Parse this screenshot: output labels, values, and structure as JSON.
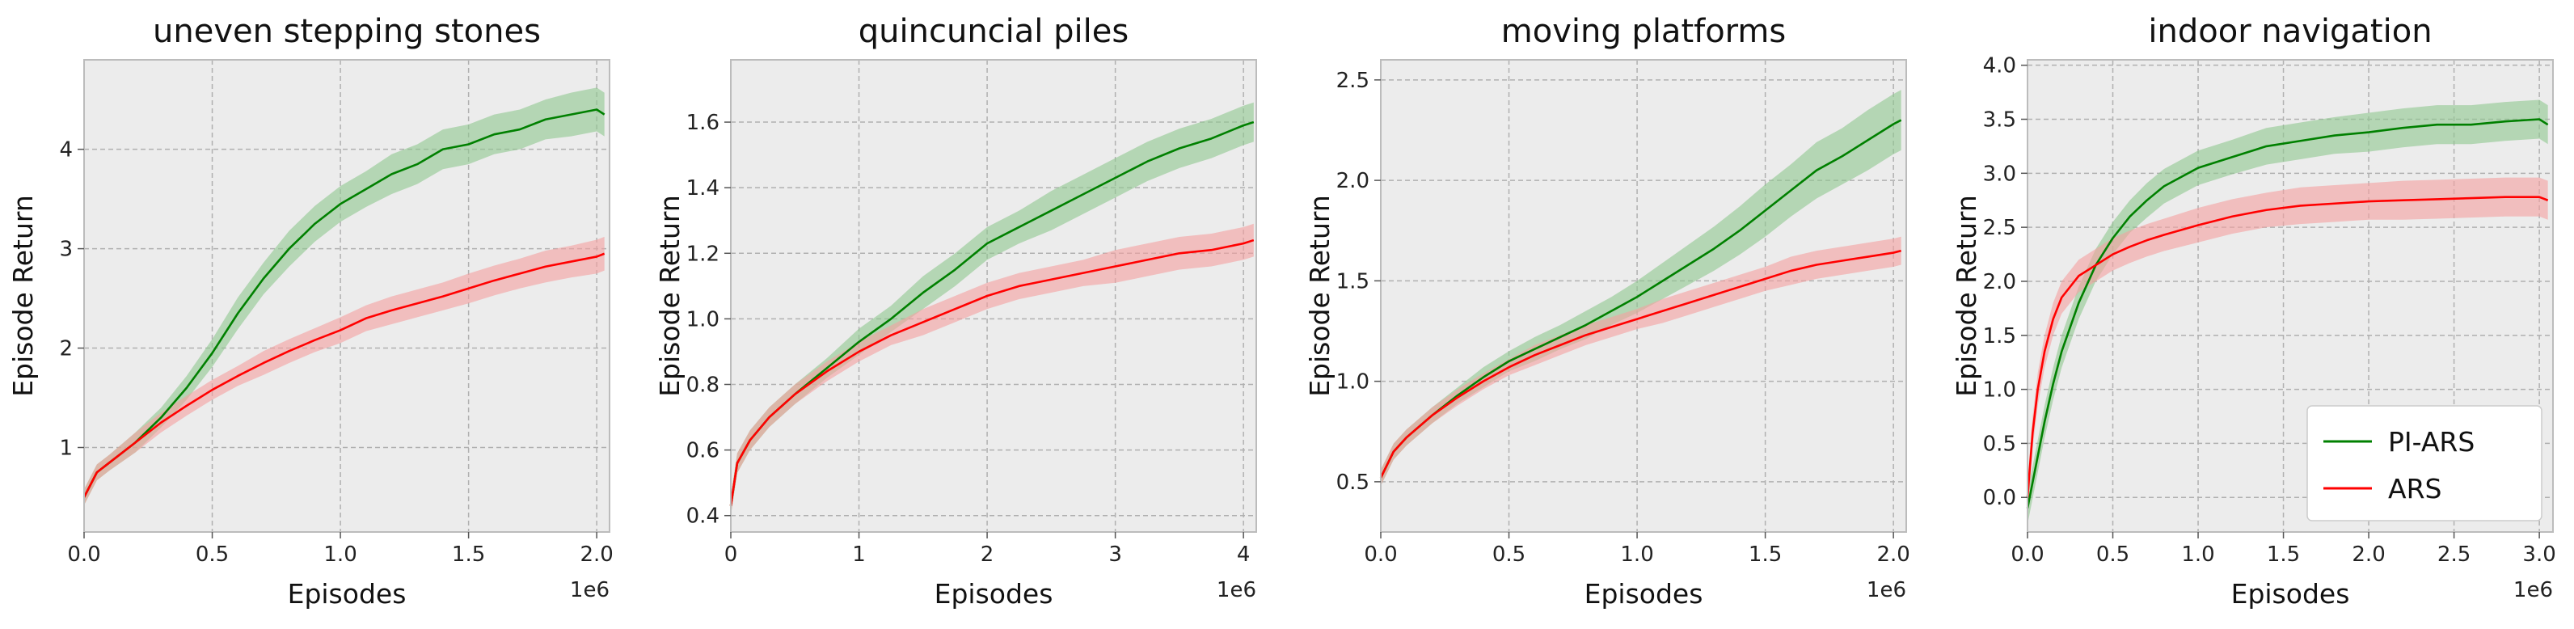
{
  "figure": {
    "exponent_label": "1e6"
  },
  "chart_data": [
    {
      "type": "line",
      "title": "uneven stepping stones",
      "xlabel": "Episodes",
      "ylabel": "Episode Return",
      "xlim": [
        0,
        2.05
      ],
      "ylim": [
        0.15,
        4.9
      ],
      "xticks": [
        0.0,
        0.5,
        1.0,
        1.5,
        2.0
      ],
      "xtick_labels": [
        "0.0",
        "0.5",
        "1.0",
        "1.5",
        "2.0"
      ],
      "yticks": [
        1,
        2,
        3,
        4
      ],
      "ytick_labels": [
        "1",
        "2",
        "3",
        "4"
      ],
      "grid": true,
      "series": [
        {
          "name": "PI-ARS",
          "color": "#008000",
          "x": [
            0,
            0.05,
            0.1,
            0.2,
            0.3,
            0.4,
            0.5,
            0.6,
            0.7,
            0.8,
            0.9,
            1.0,
            1.1,
            1.2,
            1.3,
            1.4,
            1.5,
            1.6,
            1.7,
            1.8,
            1.9,
            2.0,
            2.03
          ],
          "y": [
            0.5,
            0.75,
            0.85,
            1.05,
            1.3,
            1.6,
            1.95,
            2.35,
            2.7,
            3.0,
            3.25,
            3.45,
            3.6,
            3.75,
            3.85,
            4.0,
            4.05,
            4.15,
            4.2,
            4.3,
            4.35,
            4.4,
            4.35
          ],
          "band": [
            0.08,
            0.08,
            0.08,
            0.1,
            0.1,
            0.12,
            0.14,
            0.16,
            0.16,
            0.18,
            0.18,
            0.18,
            0.18,
            0.2,
            0.2,
            0.2,
            0.2,
            0.2,
            0.2,
            0.2,
            0.22,
            0.22,
            0.22
          ]
        },
        {
          "name": "ARS",
          "color": "#ff0000",
          "x": [
            0,
            0.05,
            0.1,
            0.2,
            0.3,
            0.4,
            0.5,
            0.6,
            0.7,
            0.8,
            0.9,
            1.0,
            1.1,
            1.2,
            1.3,
            1.4,
            1.5,
            1.6,
            1.7,
            1.8,
            1.9,
            2.0,
            2.03
          ],
          "y": [
            0.5,
            0.75,
            0.85,
            1.05,
            1.25,
            1.42,
            1.58,
            1.72,
            1.85,
            1.97,
            2.08,
            2.18,
            2.3,
            2.38,
            2.45,
            2.52,
            2.6,
            2.68,
            2.75,
            2.82,
            2.87,
            2.92,
            2.95
          ],
          "band": [
            0.08,
            0.08,
            0.08,
            0.1,
            0.1,
            0.1,
            0.1,
            0.1,
            0.12,
            0.12,
            0.12,
            0.13,
            0.13,
            0.14,
            0.14,
            0.14,
            0.15,
            0.15,
            0.15,
            0.16,
            0.16,
            0.17,
            0.17
          ]
        }
      ]
    },
    {
      "type": "line",
      "title": "quincuncial piles",
      "xlabel": "Episodes",
      "ylabel": "Episode Return",
      "xlim": [
        0,
        4.1
      ],
      "ylim": [
        0.35,
        1.79
      ],
      "xticks": [
        0,
        1,
        2,
        3,
        4
      ],
      "xtick_labels": [
        "0",
        "1",
        "2",
        "3",
        "4"
      ],
      "yticks": [
        0.4,
        0.6,
        0.8,
        1.0,
        1.2,
        1.4,
        1.6
      ],
      "ytick_labels": [
        "0.4",
        "0.6",
        "0.8",
        "1.0",
        "1.2",
        "1.4",
        "1.6"
      ],
      "grid": true,
      "series": [
        {
          "name": "PI-ARS",
          "color": "#008000",
          "x": [
            0,
            0.05,
            0.15,
            0.3,
            0.5,
            0.75,
            1.0,
            1.25,
            1.5,
            1.75,
            2.0,
            2.25,
            2.5,
            2.75,
            3.0,
            3.25,
            3.5,
            3.75,
            4.0,
            4.08
          ],
          "y": [
            0.43,
            0.56,
            0.63,
            0.7,
            0.77,
            0.85,
            0.93,
            1.0,
            1.08,
            1.15,
            1.23,
            1.28,
            1.33,
            1.38,
            1.43,
            1.48,
            1.52,
            1.55,
            1.59,
            1.6
          ],
          "band": [
            0.03,
            0.03,
            0.03,
            0.03,
            0.03,
            0.03,
            0.04,
            0.04,
            0.05,
            0.05,
            0.05,
            0.05,
            0.06,
            0.06,
            0.06,
            0.06,
            0.06,
            0.06,
            0.06,
            0.06
          ]
        },
        {
          "name": "ARS",
          "color": "#ff0000",
          "x": [
            0,
            0.05,
            0.15,
            0.3,
            0.5,
            0.75,
            1.0,
            1.25,
            1.5,
            1.75,
            2.0,
            2.25,
            2.5,
            2.75,
            3.0,
            3.25,
            3.5,
            3.75,
            4.0,
            4.08
          ],
          "y": [
            0.43,
            0.56,
            0.63,
            0.7,
            0.77,
            0.84,
            0.9,
            0.95,
            0.99,
            1.03,
            1.07,
            1.1,
            1.12,
            1.14,
            1.16,
            1.18,
            1.2,
            1.21,
            1.23,
            1.24
          ],
          "band": [
            0.03,
            0.03,
            0.03,
            0.03,
            0.03,
            0.03,
            0.03,
            0.03,
            0.04,
            0.04,
            0.04,
            0.04,
            0.04,
            0.04,
            0.05,
            0.05,
            0.05,
            0.05,
            0.05,
            0.05
          ]
        }
      ]
    },
    {
      "type": "line",
      "title": "moving platforms",
      "xlabel": "Episodes",
      "ylabel": "Episode Return",
      "xlim": [
        0,
        2.05
      ],
      "ylim": [
        0.25,
        2.6
      ],
      "xticks": [
        0.0,
        0.5,
        1.0,
        1.5,
        2.0
      ],
      "xtick_labels": [
        "0.0",
        "0.5",
        "1.0",
        "1.5",
        "2.0"
      ],
      "yticks": [
        0.5,
        1.0,
        1.5,
        2.0,
        2.5
      ],
      "ytick_labels": [
        "0.5",
        "1.0",
        "1.5",
        "2.0",
        "2.5"
      ],
      "grid": true,
      "series": [
        {
          "name": "PI-ARS",
          "color": "#008000",
          "x": [
            0,
            0.05,
            0.1,
            0.2,
            0.3,
            0.4,
            0.5,
            0.6,
            0.7,
            0.8,
            0.9,
            1.0,
            1.1,
            1.2,
            1.3,
            1.4,
            1.5,
            1.6,
            1.7,
            1.8,
            1.9,
            2.0,
            2.03
          ],
          "y": [
            0.52,
            0.65,
            0.72,
            0.83,
            0.93,
            1.02,
            1.1,
            1.16,
            1.22,
            1.28,
            1.35,
            1.42,
            1.5,
            1.58,
            1.66,
            1.75,
            1.85,
            1.95,
            2.05,
            2.12,
            2.2,
            2.28,
            2.3
          ],
          "band": [
            0.04,
            0.04,
            0.04,
            0.04,
            0.04,
            0.05,
            0.05,
            0.06,
            0.06,
            0.07,
            0.07,
            0.08,
            0.09,
            0.1,
            0.11,
            0.12,
            0.13,
            0.13,
            0.14,
            0.14,
            0.15,
            0.15,
            0.15
          ]
        },
        {
          "name": "ARS",
          "color": "#ff0000",
          "x": [
            0,
            0.05,
            0.1,
            0.2,
            0.3,
            0.4,
            0.5,
            0.6,
            0.7,
            0.8,
            0.9,
            1.0,
            1.1,
            1.2,
            1.3,
            1.4,
            1.5,
            1.6,
            1.7,
            1.8,
            1.9,
            2.0,
            2.03
          ],
          "y": [
            0.52,
            0.65,
            0.72,
            0.83,
            0.92,
            1.0,
            1.07,
            1.13,
            1.18,
            1.23,
            1.27,
            1.31,
            1.35,
            1.39,
            1.43,
            1.47,
            1.51,
            1.55,
            1.58,
            1.6,
            1.62,
            1.64,
            1.65
          ],
          "band": [
            0.04,
            0.04,
            0.04,
            0.04,
            0.04,
            0.04,
            0.04,
            0.05,
            0.05,
            0.05,
            0.05,
            0.05,
            0.06,
            0.06,
            0.06,
            0.06,
            0.06,
            0.07,
            0.07,
            0.07,
            0.07,
            0.07,
            0.07
          ]
        }
      ]
    },
    {
      "type": "line",
      "title": "indoor navigation",
      "xlabel": "Episodes",
      "ylabel": "Episode Return",
      "xlim": [
        0,
        3.08
      ],
      "ylim": [
        -0.32,
        4.05
      ],
      "xticks": [
        0.0,
        0.5,
        1.0,
        1.5,
        2.0,
        2.5,
        3.0
      ],
      "xtick_labels": [
        "0.0",
        "0.5",
        "1.0",
        "1.5",
        "2.0",
        "2.5",
        "3.0"
      ],
      "yticks": [
        0.0,
        0.5,
        1.0,
        1.5,
        2.0,
        2.5,
        3.0,
        3.5,
        4.0
      ],
      "ytick_labels": [
        "0.0",
        "0.5",
        "1.0",
        "1.5",
        "2.0",
        "2.5",
        "3.0",
        "3.5",
        "4.0"
      ],
      "grid": true,
      "legend": "lower-right",
      "series": [
        {
          "name": "PI-ARS",
          "color": "#008000",
          "x": [
            0,
            0.05,
            0.1,
            0.15,
            0.2,
            0.3,
            0.4,
            0.5,
            0.6,
            0.7,
            0.8,
            1.0,
            1.2,
            1.4,
            1.6,
            1.8,
            2.0,
            2.2,
            2.4,
            2.6,
            2.8,
            3.0,
            3.05
          ],
          "y": [
            -0.1,
            0.3,
            0.7,
            1.05,
            1.35,
            1.8,
            2.15,
            2.4,
            2.6,
            2.75,
            2.88,
            3.05,
            3.15,
            3.25,
            3.3,
            3.35,
            3.38,
            3.42,
            3.45,
            3.45,
            3.48,
            3.5,
            3.45
          ],
          "band": [
            0.15,
            0.15,
            0.15,
            0.15,
            0.15,
            0.15,
            0.15,
            0.15,
            0.15,
            0.16,
            0.16,
            0.16,
            0.16,
            0.17,
            0.17,
            0.17,
            0.18,
            0.18,
            0.18,
            0.18,
            0.18,
            0.18,
            0.18
          ]
        },
        {
          "name": "ARS",
          "color": "#ff0000",
          "x": [
            0,
            0.03,
            0.06,
            0.1,
            0.15,
            0.2,
            0.3,
            0.4,
            0.5,
            0.6,
            0.7,
            0.8,
            1.0,
            1.2,
            1.4,
            1.6,
            1.8,
            2.0,
            2.2,
            2.4,
            2.6,
            2.8,
            3.0,
            3.05
          ],
          "y": [
            0.0,
            0.6,
            1.0,
            1.35,
            1.65,
            1.85,
            2.05,
            2.15,
            2.25,
            2.32,
            2.38,
            2.43,
            2.52,
            2.6,
            2.66,
            2.7,
            2.72,
            2.74,
            2.75,
            2.76,
            2.77,
            2.78,
            2.78,
            2.75
          ],
          "band": [
            0.15,
            0.15,
            0.15,
            0.15,
            0.15,
            0.15,
            0.15,
            0.15,
            0.15,
            0.15,
            0.15,
            0.15,
            0.16,
            0.16,
            0.16,
            0.17,
            0.17,
            0.17,
            0.18,
            0.18,
            0.18,
            0.18,
            0.18,
            0.18
          ]
        }
      ]
    }
  ],
  "colors": {
    "plot_background": "#ececec",
    "grid": "#b0b0b0",
    "frame": "#bcbcbc",
    "band_green": "#90c890",
    "band_red": "#f5a0a0"
  }
}
